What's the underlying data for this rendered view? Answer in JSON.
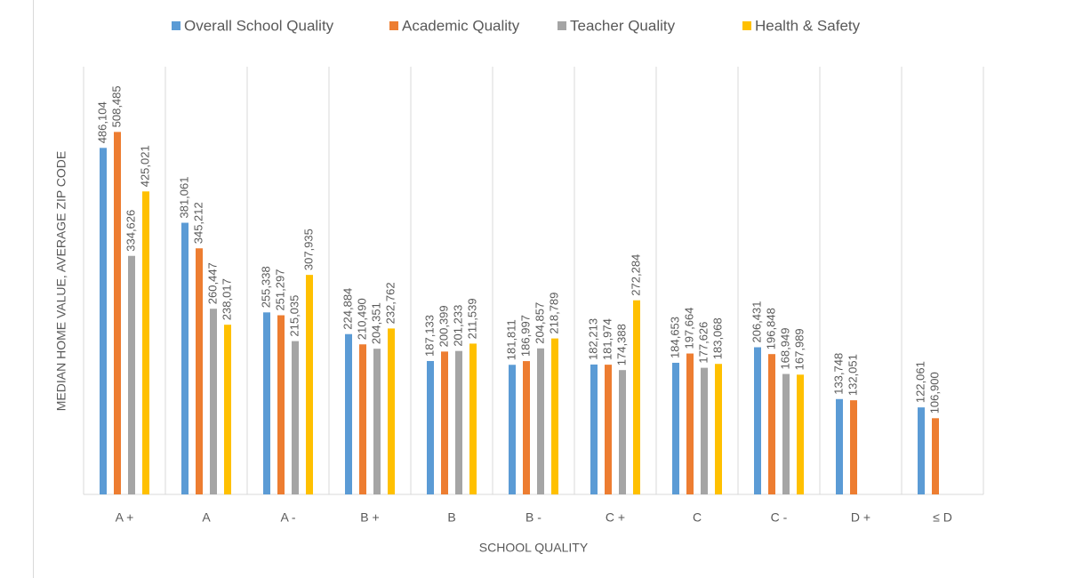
{
  "chart_data": {
    "type": "bar",
    "x_label": "SCHOOL QUALITY",
    "y_label": "MEDIAN HOME VALUE, AVERAGE ZIP CODE",
    "categories": [
      "A +",
      "A",
      "A -",
      "B +",
      "B",
      "B -",
      "C +",
      "C",
      "C -",
      "D +",
      "≤ D"
    ],
    "series": [
      {
        "name": "Overall School Quality",
        "color": "#5b9bd5",
        "values": [
          486104,
          381061,
          255338,
          224884,
          187133,
          181811,
          182213,
          184653,
          206431,
          133748,
          122061
        ],
        "value_labels": [
          "486,104",
          "381,061",
          "255,338",
          "224,884",
          "187,133",
          "181,811",
          "182,213",
          "184,653",
          "206,431",
          "133,748",
          "122,061"
        ]
      },
      {
        "name": "Academic Quality",
        "color": "#ed7d31",
        "values": [
          508485,
          345212,
          251297,
          210490,
          200399,
          186997,
          181974,
          197664,
          196848,
          132051,
          106900
        ],
        "value_labels": [
          "508,485",
          "345,212",
          "251,297",
          "210,490",
          "200,399",
          "186,997",
          "181,974",
          "197,664",
          "196,848",
          "132,051",
          "106,900"
        ]
      },
      {
        "name": "Teacher Quality",
        "color": "#a5a5a5",
        "values": [
          334626,
          260447,
          215035,
          204351,
          201233,
          204857,
          174388,
          177626,
          168949,
          null,
          null
        ],
        "value_labels": [
          "334,626",
          "260,447",
          "215,035",
          "204,351",
          "201,233",
          "204,857",
          "174,388",
          "177,626",
          "168,949",
          null,
          null
        ]
      },
      {
        "name": "Health & Safety",
        "color": "#ffc000",
        "values": [
          425021,
          238017,
          307935,
          232762,
          211539,
          218789,
          272284,
          183068,
          167989,
          null,
          null
        ],
        "value_labels": [
          "425,021",
          "238,017",
          "307,935",
          "232,762",
          "211,539",
          "218,789",
          "272,284",
          "183,068",
          "167,989",
          null,
          null
        ]
      }
    ],
    "ylim": [
      0,
      600000
    ],
    "legend": "top"
  }
}
